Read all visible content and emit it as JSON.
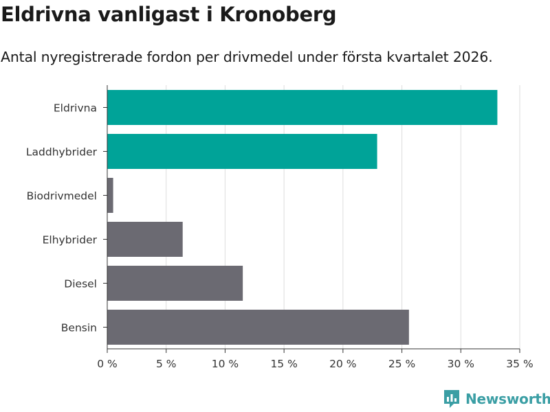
{
  "title": "Eldrivna vanligast i Kronoberg",
  "subtitle": "Antal nyregistrerade fordon per drivmedel under första kvartalet 2026.",
  "brand": "Newsworthy",
  "colors": {
    "highlight": "#00a398",
    "default": "#6b6a72",
    "grid": "#dddddd",
    "axis": "#333333",
    "brand": "#3a9ea4"
  },
  "chart_data": {
    "type": "bar",
    "orientation": "horizontal",
    "title": "Eldrivna vanligast i Kronoberg",
    "subtitle": "Antal nyregistrerade fordon per drivmedel under första kvartalet 2026.",
    "xlabel": "",
    "ylabel": "",
    "xlim": [
      0,
      35
    ],
    "grid": true,
    "xticks": [
      0,
      5,
      10,
      15,
      20,
      25,
      30,
      35
    ],
    "xtick_labels": [
      "0 %",
      "5 %",
      "10 %",
      "15 %",
      "20 %",
      "25 %",
      "30 %",
      "35 %"
    ],
    "categories": [
      "Eldrivna",
      "Laddhybrider",
      "Biodrivmedel",
      "Elhybrider",
      "Diesel",
      "Bensin"
    ],
    "values": [
      33.1,
      22.9,
      0.5,
      6.4,
      11.5,
      25.6
    ],
    "highlight": [
      true,
      true,
      false,
      false,
      false,
      false
    ]
  }
}
